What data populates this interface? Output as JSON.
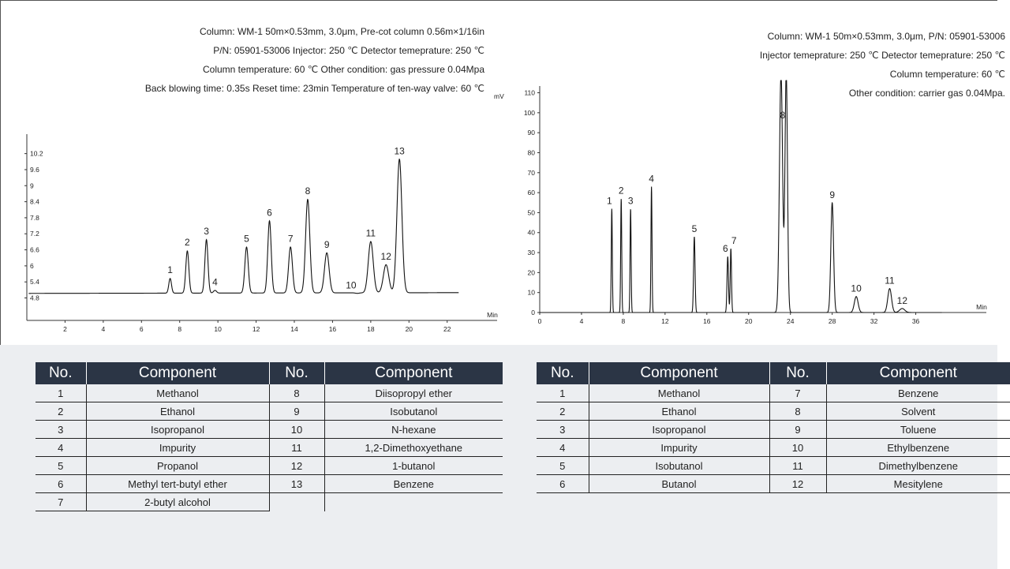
{
  "chart_data": [
    {
      "type": "line",
      "y_ticks": [
        "4.8",
        "5.4",
        "6",
        "6.6",
        "7.2",
        "7.8",
        "8.4",
        "9",
        "9.6",
        "10.2"
      ],
      "x_ticks": [
        "2",
        "4",
        "6",
        "8",
        "10",
        "12",
        "14",
        "16",
        "18",
        "20",
        "22"
      ],
      "xunit": "Min",
      "xlim": [
        0,
        24.2
      ],
      "ylim": [
        4.55,
        10.75
      ],
      "baseline": 5.0,
      "peaks": [
        {
          "label": "1",
          "rt": 7.5,
          "height": 5.55,
          "width": 0.07
        },
        {
          "label": "2",
          "rt": 8.4,
          "height": 6.58,
          "width": 0.08
        },
        {
          "label": "3",
          "rt": 9.4,
          "height": 7.0,
          "width": 0.08
        },
        {
          "label": "4",
          "rt": 9.85,
          "height": 5.1,
          "width": 0.08
        },
        {
          "label": "5",
          "rt": 11.5,
          "height": 6.72,
          "width": 0.09
        },
        {
          "label": "6",
          "rt": 12.7,
          "height": 7.7,
          "width": 0.09
        },
        {
          "label": "7",
          "rt": 13.8,
          "height": 6.72,
          "width": 0.1
        },
        {
          "label": "8",
          "rt": 14.7,
          "height": 8.5,
          "width": 0.11
        },
        {
          "label": "9",
          "rt": 15.7,
          "height": 6.5,
          "width": 0.12
        },
        {
          "label": "10",
          "rt": 17.3,
          "height": 4.98,
          "width": 0.1
        },
        {
          "label": "11",
          "rt": 18.0,
          "height": 6.92,
          "width": 0.13
        },
        {
          "label": "12",
          "rt": 18.8,
          "height": 6.05,
          "width": 0.14
        },
        {
          "label": "13",
          "rt": 19.5,
          "height": 10.0,
          "width": 0.13
        }
      ]
    },
    {
      "type": "line",
      "yunit": "mV",
      "y_ticks": [
        "0",
        "10",
        "20",
        "30",
        "40",
        "50",
        "60",
        "70",
        "80",
        "90",
        "100",
        "110"
      ],
      "x_ticks": [
        "0",
        "4",
        "8",
        "12",
        "16",
        "20",
        "24",
        "28",
        "32",
        "36"
      ],
      "xunit": "Min",
      "xlim": [
        0,
        42
      ],
      "ylim": [
        0,
        111
      ],
      "baseline": 0,
      "peaks": [
        {
          "label": "1",
          "rt": 6.9,
          "height": 52,
          "width": 0.05
        },
        {
          "label": "2",
          "rt": 7.8,
          "height": 57,
          "width": 0.05
        },
        {
          "label": "3",
          "rt": 8.7,
          "height": 52,
          "width": 0.05
        },
        {
          "label": "4",
          "rt": 10.7,
          "height": 63,
          "width": 0.05
        },
        {
          "label": "5",
          "rt": 14.8,
          "height": 38,
          "width": 0.07
        },
        {
          "label": "6",
          "rt": 18.0,
          "height": 28,
          "width": 0.07
        },
        {
          "label": "7",
          "rt": 18.3,
          "height": 32,
          "width": 0.06
        },
        {
          "label": "8",
          "rt": 23.1,
          "height": 120,
          "width": 0.15
        },
        {
          "label": "8",
          "rt": 23.6,
          "height": 120,
          "width": 0.12
        },
        {
          "label": "9",
          "rt": 28.0,
          "height": 55,
          "width": 0.13
        },
        {
          "label": "10",
          "rt": 30.3,
          "height": 8,
          "width": 0.18
        },
        {
          "label": "11",
          "rt": 33.5,
          "height": 12,
          "width": 0.18
        },
        {
          "label": "12",
          "rt": 34.7,
          "height": 2,
          "width": 0.25
        }
      ]
    }
  ],
  "left_info": [
    "Column: WM-1  50m×0.53mm, 3.0μm,  Pre-cot column 0.56m×1/16in",
    "P/N: 05901-53006  Injector: 250 ℃   Detector temeprature: 250 ℃",
    "Column temperature: 60 ℃   Other condition: gas pressure 0.04Mpa",
    "Back blowing time: 0.35s Reset time: 23min Temperature of ten-way valve: 60 ℃"
  ],
  "right_info": [
    "Column: WM-1  50m×0.53mm, 3.0μm,  P/N: 05901-53006",
    "Injector temeprature: 250 ℃ Detector temeprature: 250 ℃",
    "Column temperature: 60 ℃",
    "Other condition: carrier gas 0.04Mpa."
  ],
  "table_headers": {
    "no": "No.",
    "component": "Component"
  },
  "left_table": [
    [
      "1",
      "Methanol",
      "8",
      "Diisopropyl ether"
    ],
    [
      "2",
      "Ethanol",
      "9",
      "Isobutanol"
    ],
    [
      "3",
      "Isopropanol",
      "10",
      "N-hexane"
    ],
    [
      "4",
      "Impurity",
      "11",
      "1,2-Dimethoxyethane"
    ],
    [
      "5",
      "Propanol",
      "12",
      "1-butanol"
    ],
    [
      "6",
      "Methyl tert-butyl ether",
      "13",
      "Benzene"
    ],
    [
      "7",
      "2-butyl alcohol",
      "",
      ""
    ]
  ],
  "right_table": [
    [
      "1",
      "Methanol",
      "7",
      "Benzene"
    ],
    [
      "2",
      "Ethanol",
      "8",
      "Solvent"
    ],
    [
      "3",
      "Isopropanol",
      "9",
      "Toluene"
    ],
    [
      "4",
      "Impurity",
      "10",
      "Ethylbenzene"
    ],
    [
      "5",
      "Isobutanol",
      "11",
      "Dimethylbenzene"
    ],
    [
      "6",
      "Butanol",
      "12",
      "Mesitylene"
    ]
  ]
}
